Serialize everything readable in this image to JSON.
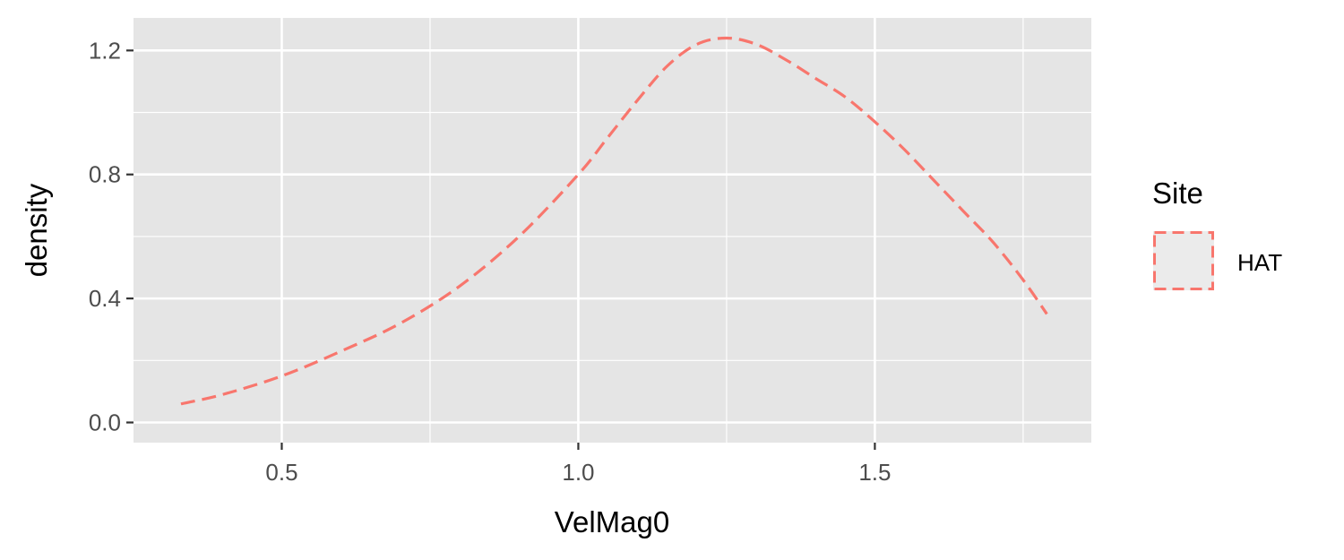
{
  "chart_data": {
    "type": "line",
    "title": "",
    "xlabel": "VelMag0",
    "ylabel": "density",
    "xlim": [
      0.25,
      1.865
    ],
    "ylim": [
      -0.065,
      1.305
    ],
    "x_ticks": [
      0.5,
      1.0,
      1.5
    ],
    "x_tick_labels": [
      "0.5",
      "1.0",
      "1.5"
    ],
    "x_minor_ticks": [
      0.75,
      1.25,
      1.75
    ],
    "y_ticks": [
      0.0,
      0.4,
      0.8,
      1.2
    ],
    "y_tick_labels": [
      "0.0",
      "0.4",
      "0.8",
      "1.2"
    ],
    "y_minor_ticks": [
      0.2,
      0.6,
      1.0
    ],
    "grid": true,
    "legend": {
      "title": "Site",
      "position": "right",
      "entries": [
        "HAT"
      ]
    },
    "colors": {
      "panel_background": "#e5e5e5",
      "grid": "#ffffff",
      "line": "#f8766d",
      "legend_key_background": "#ebebeb",
      "tick_label": "#4d4d4d",
      "axis_tick": "#333333"
    },
    "line_style": "dashed",
    "series": [
      {
        "name": "HAT",
        "x": [
          0.33,
          0.4,
          0.5,
          0.6,
          0.7,
          0.8,
          0.9,
          1.0,
          1.05,
          1.1,
          1.15,
          1.2,
          1.25,
          1.3,
          1.35,
          1.4,
          1.45,
          1.5,
          1.55,
          1.6,
          1.65,
          1.7,
          1.75,
          1.79
        ],
        "y": [
          0.06,
          0.09,
          0.15,
          0.23,
          0.32,
          0.44,
          0.6,
          0.8,
          0.92,
          1.04,
          1.15,
          1.22,
          1.24,
          1.22,
          1.17,
          1.11,
          1.05,
          0.97,
          0.88,
          0.78,
          0.68,
          0.58,
          0.46,
          0.35
        ]
      }
    ]
  }
}
